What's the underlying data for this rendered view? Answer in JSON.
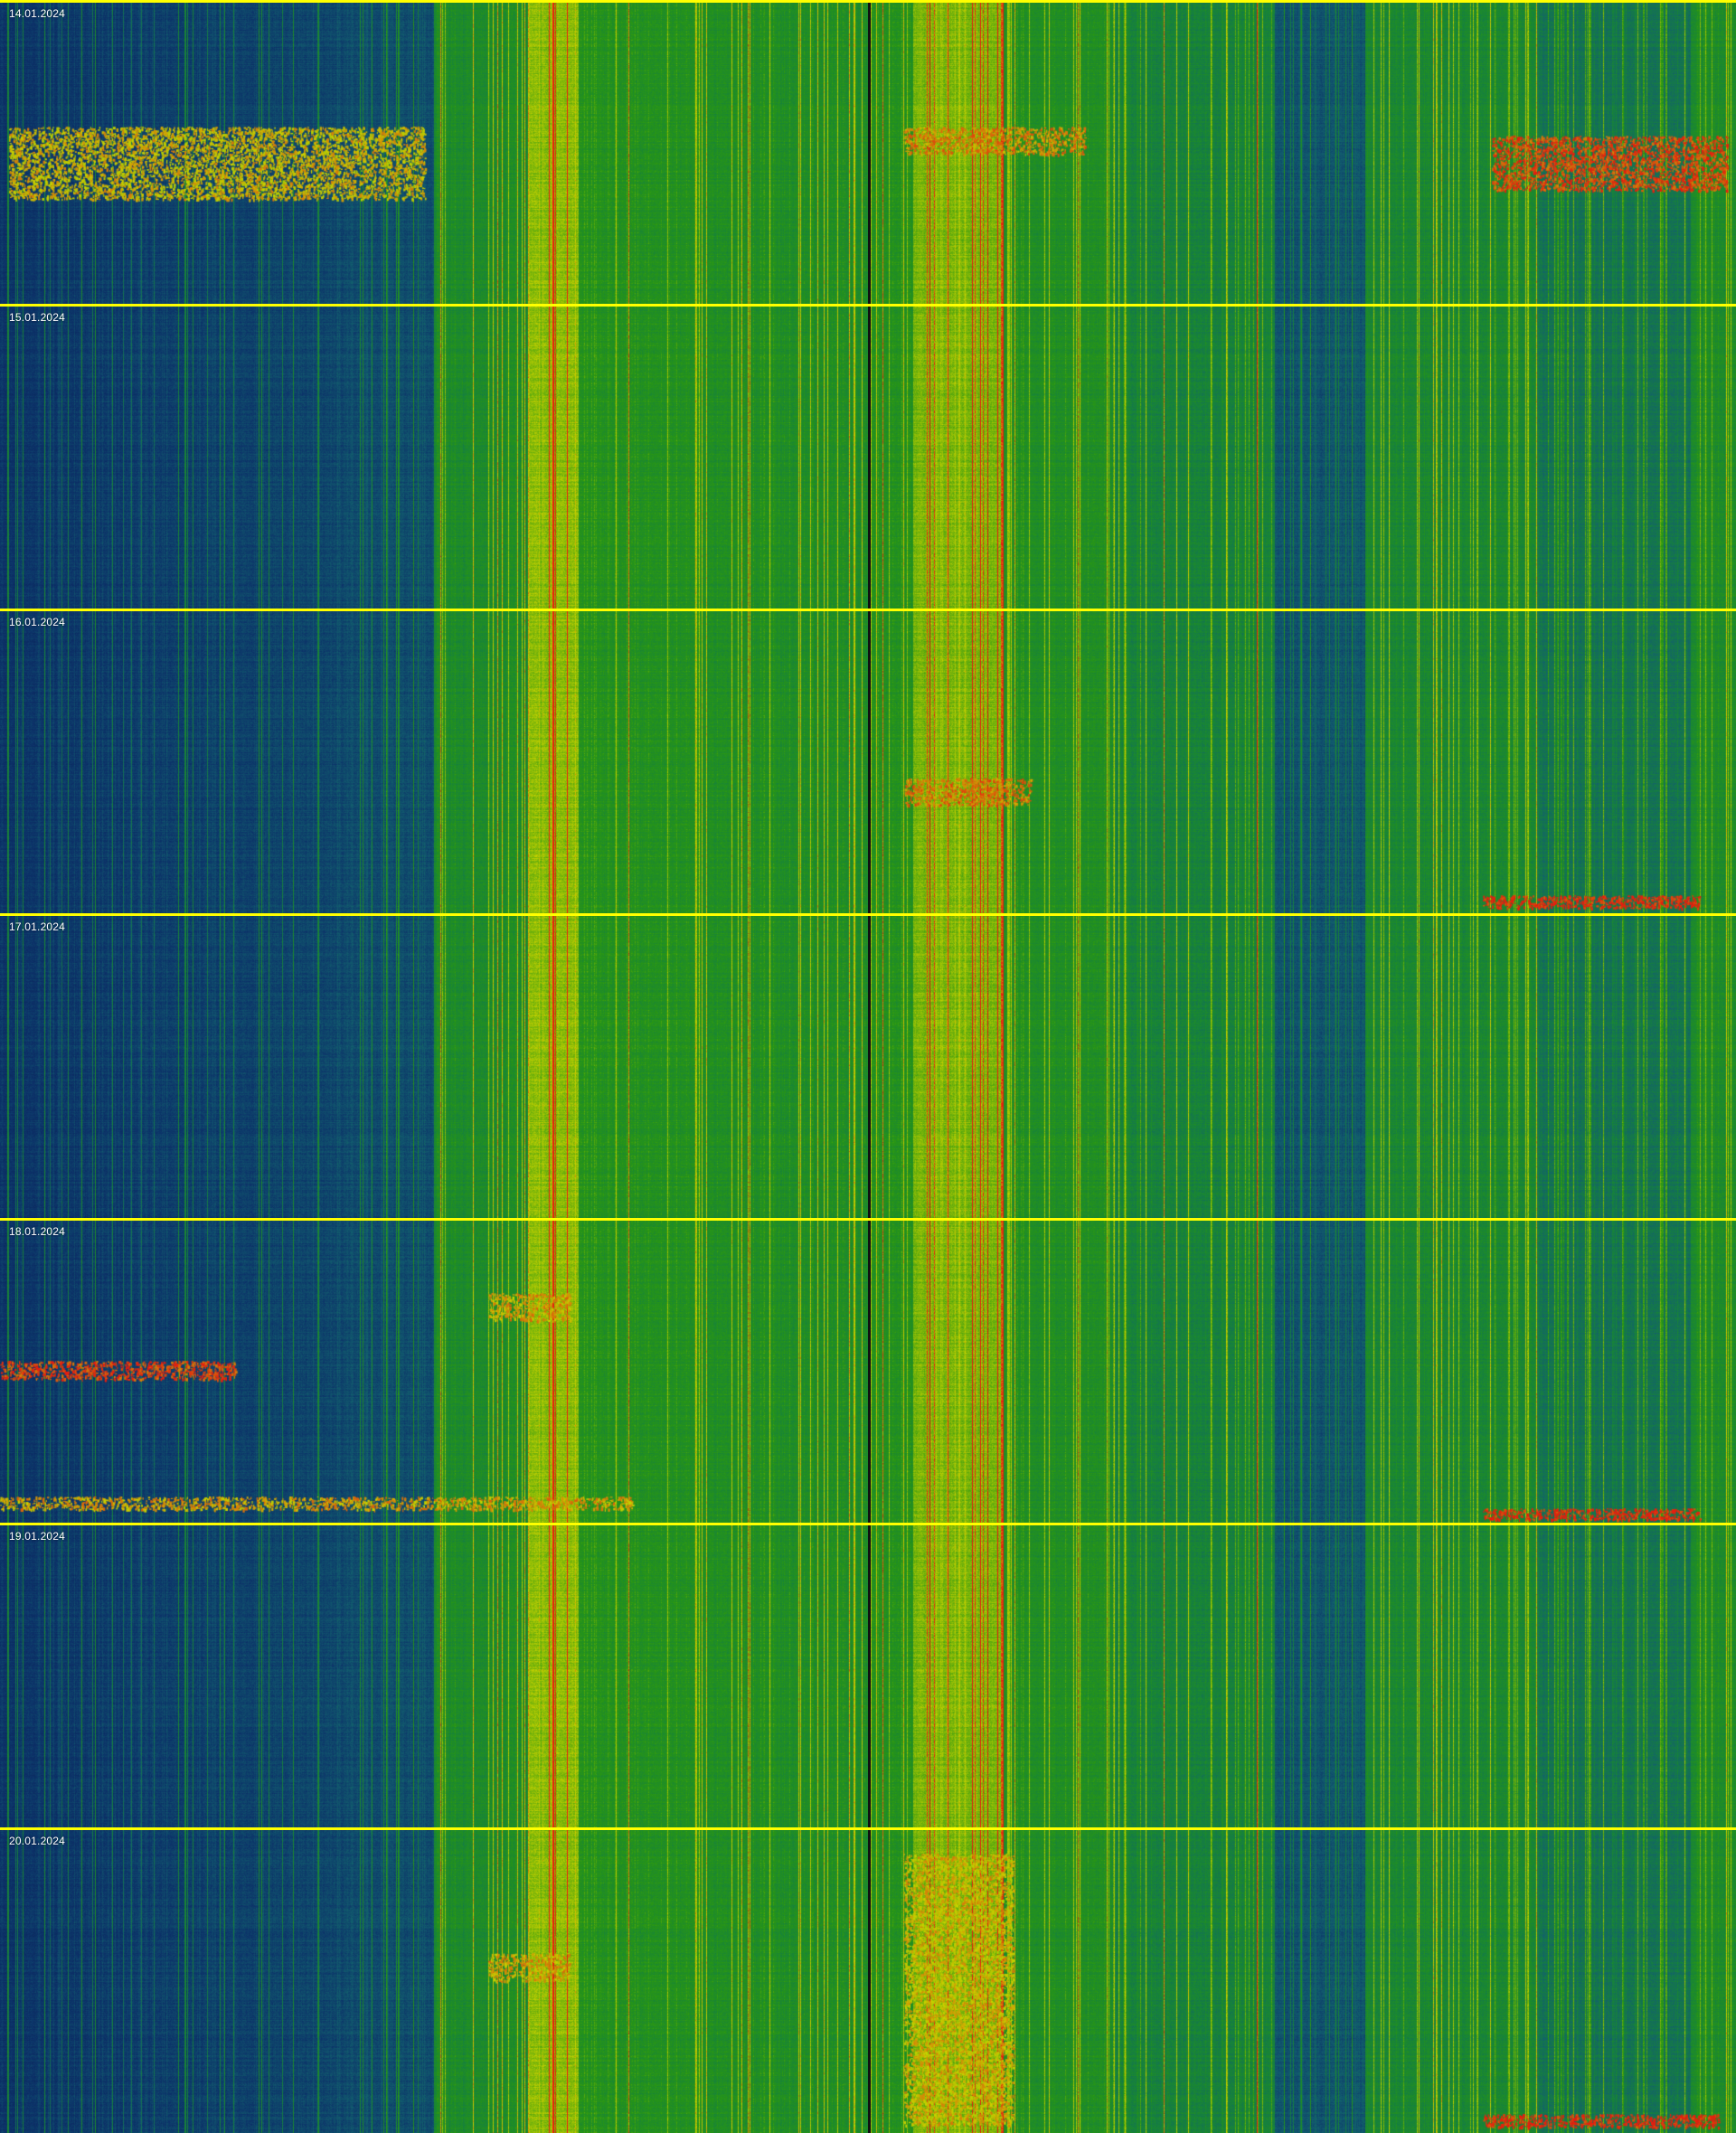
{
  "spectrogram": {
    "dates": [
      "14.01.2024",
      "15.01.2024",
      "16.01.2024",
      "17.01.2024",
      "18.01.2024",
      "19.01.2024",
      "20.01.2024"
    ],
    "colors": {
      "separator": "#ffff00",
      "center_line": "#111111",
      "low": "#0b2a5e",
      "mid": "#1a8a2a",
      "high": "#d8e000",
      "peak": "#e02a10"
    }
  }
}
